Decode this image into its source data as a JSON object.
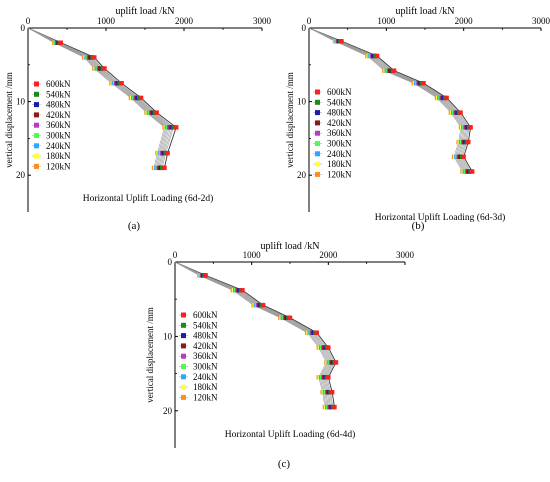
{
  "legend_labels": [
    "600kN",
    "540kN",
    "480kN",
    "420kN",
    "360kN",
    "300kN",
    "240kN",
    "180kN",
    "120kN"
  ],
  "legend_colors": [
    "#ff1e1e",
    "#1a8a1a",
    "#1a1ab4",
    "#8b1a1a",
    "#b43cc8",
    "#4cff4c",
    "#2aa8ff",
    "#ffff3c",
    "#ff8c1e"
  ],
  "chart_data": [
    {
      "type": "line",
      "panel_label": "(a)",
      "title": "Horizontal Uplift Loading (6d-2d)",
      "xlabel": "uplift load /kN",
      "ylabel": "vertical displacement /mm",
      "xticks": [
        "0",
        "1000",
        "2000",
        "3000"
      ],
      "yticks": [
        "0",
        "10",
        "20"
      ],
      "xlim": [
        0,
        3000
      ],
      "ylim": [
        0,
        25
      ],
      "series": [
        {
          "name": "600kN",
          "x": [
            0,
            420,
            850,
            980,
            1200,
            1450,
            1650,
            1900,
            1790,
            1750
          ],
          "y": [
            0,
            2,
            4,
            5.5,
            7.5,
            9.5,
            11.5,
            13.5,
            17,
            19
          ]
        },
        {
          "name": "540kN",
          "x": [
            0,
            405,
            825,
            955,
            1175,
            1425,
            1625,
            1865,
            1765,
            1720
          ],
          "y": [
            0,
            2,
            4,
            5.5,
            7.5,
            9.5,
            11.5,
            13.5,
            17,
            19
          ]
        },
        {
          "name": "480kN",
          "x": [
            0,
            395,
            810,
            940,
            1160,
            1410,
            1610,
            1850,
            1750,
            1705
          ],
          "y": [
            0,
            2,
            4,
            5.5,
            7.5,
            9.5,
            11.5,
            13.5,
            17,
            19
          ]
        },
        {
          "name": "420kN",
          "x": [
            0,
            385,
            795,
            925,
            1145,
            1395,
            1595,
            1830,
            1735,
            1690
          ],
          "y": [
            0,
            2,
            4,
            5.5,
            7.5,
            9.5,
            11.5,
            13.5,
            17,
            19
          ]
        },
        {
          "name": "360kN",
          "x": [
            0,
            375,
            780,
            910,
            1130,
            1380,
            1580,
            1810,
            1720,
            1675
          ],
          "y": [
            0,
            2,
            4,
            5.5,
            7.5,
            9.5,
            11.5,
            13.5,
            17,
            19
          ]
        },
        {
          "name": "300kN",
          "x": [
            0,
            365,
            765,
            895,
            1115,
            1365,
            1565,
            1795,
            1705,
            1660
          ],
          "y": [
            0,
            2,
            4,
            5.5,
            7.5,
            9.5,
            11.5,
            13.5,
            17,
            19
          ]
        },
        {
          "name": "240kN",
          "x": [
            0,
            355,
            750,
            880,
            1100,
            1350,
            1550,
            1780,
            1690,
            1645
          ],
          "y": [
            0,
            2,
            4,
            5.5,
            7.5,
            9.5,
            11.5,
            13.5,
            17,
            19
          ]
        },
        {
          "name": "180kN",
          "x": [
            0,
            345,
            735,
            865,
            1085,
            1335,
            1535,
            1765,
            1675,
            1630
          ],
          "y": [
            0,
            2,
            4,
            5.5,
            7.5,
            9.5,
            11.5,
            13.5,
            17,
            19
          ]
        },
        {
          "name": "120kN",
          "x": [
            0,
            335,
            720,
            850,
            1070,
            1320,
            1520,
            1750,
            1660,
            1615
          ],
          "y": [
            0,
            2,
            4,
            5.5,
            7.5,
            9.5,
            11.5,
            13.5,
            17,
            19
          ]
        }
      ]
    },
    {
      "type": "line",
      "panel_label": "(b)",
      "title": "Horizontal Uplift Loading (6d-3d)",
      "xlabel": "uplift load /kN",
      "ylabel": "vertical displacement /mm",
      "xticks": [
        "0",
        "1000",
        "2000",
        "3000"
      ],
      "yticks": [
        "0",
        "10",
        "20"
      ],
      "xlim": [
        0,
        3000
      ],
      "ylim": [
        0,
        25
      ],
      "series": [
        {
          "name": "600kN",
          "x": [
            0,
            420,
            880,
            1100,
            1480,
            1780,
            1960,
            2090,
            2060,
            2000,
            2110
          ],
          "y": [
            0,
            1.8,
            3.8,
            5.8,
            7.5,
            9.5,
            11.5,
            13.5,
            15.5,
            17.5,
            19.5
          ]
        },
        {
          "name": "540kN",
          "x": [
            0,
            405,
            860,
            1080,
            1460,
            1760,
            1940,
            2070,
            2040,
            1980,
            2090
          ],
          "y": [
            0,
            1.8,
            3.8,
            5.8,
            7.5,
            9.5,
            11.5,
            13.5,
            15.5,
            17.5,
            19.5
          ]
        },
        {
          "name": "480kN",
          "x": [
            0,
            395,
            845,
            1065,
            1445,
            1745,
            1925,
            2055,
            2025,
            1965,
            2075
          ],
          "y": [
            0,
            1.8,
            3.8,
            5.8,
            7.5,
            9.5,
            11.5,
            13.5,
            15.5,
            17.5,
            19.5
          ]
        },
        {
          "name": "420kN",
          "x": [
            0,
            385,
            830,
            1050,
            1430,
            1730,
            1910,
            2040,
            2010,
            1950,
            2060
          ],
          "y": [
            0,
            1.8,
            3.8,
            5.8,
            7.5,
            9.5,
            11.5,
            13.5,
            15.5,
            17.5,
            19.5
          ]
        },
        {
          "name": "360kN",
          "x": [
            0,
            375,
            815,
            1035,
            1415,
            1715,
            1895,
            2025,
            1995,
            1935,
            2045
          ],
          "y": [
            0,
            1.8,
            3.8,
            5.8,
            7.5,
            9.5,
            11.5,
            13.5,
            15.5,
            17.5,
            19.5
          ]
        },
        {
          "name": "300kN",
          "x": [
            0,
            365,
            800,
            1020,
            1400,
            1700,
            1880,
            2010,
            1980,
            1920,
            2030
          ],
          "y": [
            0,
            1.8,
            3.8,
            5.8,
            7.5,
            9.5,
            11.5,
            13.5,
            15.5,
            17.5,
            19.5
          ]
        },
        {
          "name": "240kN",
          "x": [
            0,
            355,
            785,
            1005,
            1385,
            1685,
            1865,
            1995,
            1965,
            1905,
            2015
          ],
          "y": [
            0,
            1.8,
            3.8,
            5.8,
            7.5,
            9.5,
            11.5,
            13.5,
            15.5,
            17.5,
            19.5
          ]
        },
        {
          "name": "180kN",
          "x": [
            0,
            345,
            770,
            990,
            1370,
            1670,
            1850,
            1980,
            1950,
            1890,
            2000
          ],
          "y": [
            0,
            1.8,
            3.8,
            5.8,
            7.5,
            9.5,
            11.5,
            13.5,
            15.5,
            17.5,
            19.5
          ]
        },
        {
          "name": "120kN",
          "x": [
            0,
            335,
            755,
            975,
            1355,
            1655,
            1835,
            1965,
            1935,
            1875,
            1985
          ],
          "y": [
            0,
            1.8,
            3.8,
            5.8,
            7.5,
            9.5,
            11.5,
            13.5,
            15.5,
            17.5,
            19.5
          ]
        }
      ]
    },
    {
      "type": "line",
      "panel_label": "(c)",
      "title": "Horizontal Uplift Loading (6d-4d)",
      "xlabel": "uplift load /kN",
      "ylabel": "vertical displacement /mm",
      "xticks": [
        "0",
        "1000",
        "2000",
        "3000"
      ],
      "yticks": [
        "0",
        "10",
        "20"
      ],
      "xlim": [
        0,
        3000
      ],
      "ylim": [
        0,
        25
      ],
      "series": [
        {
          "name": "600kN",
          "x": [
            0,
            400,
            880,
            1150,
            1500,
            1850,
            2000,
            2100,
            2000,
            2050,
            2080
          ],
          "y": [
            0,
            1.8,
            3.8,
            5.8,
            7.5,
            9.5,
            11.5,
            13.5,
            15.5,
            17.5,
            19.5
          ]
        },
        {
          "name": "540kN",
          "x": [
            0,
            385,
            860,
            1130,
            1480,
            1830,
            1980,
            2080,
            1980,
            2030,
            2060
          ],
          "y": [
            0,
            1.8,
            3.8,
            5.8,
            7.5,
            9.5,
            11.5,
            13.5,
            15.5,
            17.5,
            19.5
          ]
        },
        {
          "name": "480kN",
          "x": [
            0,
            375,
            845,
            1115,
            1465,
            1815,
            1965,
            2065,
            1965,
            2015,
            2045
          ],
          "y": [
            0,
            1.8,
            3.8,
            5.8,
            7.5,
            9.5,
            11.5,
            13.5,
            15.5,
            17.5,
            19.5
          ]
        },
        {
          "name": "420kN",
          "x": [
            0,
            365,
            830,
            1100,
            1450,
            1800,
            1950,
            2050,
            1950,
            2000,
            2030
          ],
          "y": [
            0,
            1.8,
            3.8,
            5.8,
            7.5,
            9.5,
            11.5,
            13.5,
            15.5,
            17.5,
            19.5
          ]
        },
        {
          "name": "360kN",
          "x": [
            0,
            355,
            815,
            1085,
            1435,
            1785,
            1935,
            2035,
            1935,
            1985,
            2015
          ],
          "y": [
            0,
            1.8,
            3.8,
            5.8,
            7.5,
            9.5,
            11.5,
            13.5,
            15.5,
            17.5,
            19.5
          ]
        },
        {
          "name": "300kN",
          "x": [
            0,
            345,
            800,
            1070,
            1420,
            1770,
            1920,
            2020,
            1920,
            1970,
            2000
          ],
          "y": [
            0,
            1.8,
            3.8,
            5.8,
            7.5,
            9.5,
            11.5,
            13.5,
            15.5,
            17.5,
            19.5
          ]
        },
        {
          "name": "240kN",
          "x": [
            0,
            335,
            785,
            1055,
            1405,
            1755,
            1905,
            2005,
            1905,
            1955,
            1985
          ],
          "y": [
            0,
            1.8,
            3.8,
            5.8,
            7.5,
            9.5,
            11.5,
            13.5,
            15.5,
            17.5,
            19.5
          ]
        },
        {
          "name": "180kN",
          "x": [
            0,
            325,
            770,
            1040,
            1390,
            1740,
            1890,
            1990,
            1890,
            1940,
            1970
          ],
          "y": [
            0,
            1.8,
            3.8,
            5.8,
            7.5,
            9.5,
            11.5,
            13.5,
            15.5,
            17.5,
            19.5
          ]
        },
        {
          "name": "120kN",
          "x": [
            0,
            315,
            755,
            1025,
            1375,
            1725,
            1875,
            1975,
            1875,
            1925,
            1955
          ],
          "y": [
            0,
            1.8,
            3.8,
            5.8,
            7.5,
            9.5,
            11.5,
            13.5,
            15.5,
            17.5,
            19.5
          ]
        }
      ]
    }
  ]
}
